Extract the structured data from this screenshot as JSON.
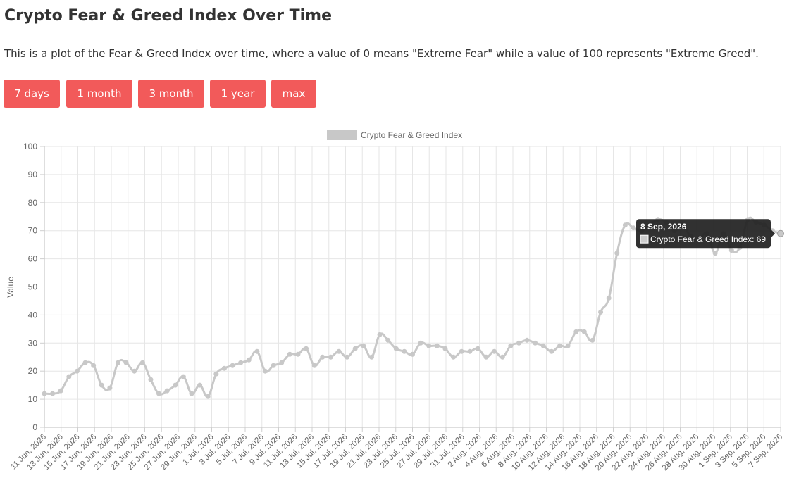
{
  "header": {
    "title": "Crypto Fear & Greed Index Over Time",
    "description": "This is a plot of the Fear & Greed Index over time, where a value of 0 means \"Extreme Fear\" while a value of 100 represents \"Extreme Greed\"."
  },
  "buttons": [
    "7 days",
    "1 month",
    "3 month",
    "1 year",
    "max"
  ],
  "colors": {
    "accent": "#f25a5a",
    "line": "#c8c8c8",
    "grid": "#e6e6e6",
    "tooltip_bg": "#1f1f1f"
  },
  "tooltip": {
    "title": "8 Sep, 2026",
    "label": "Crypto Fear & Greed Index: 69"
  },
  "chart_data": {
    "type": "line",
    "legend": "Crypto Fear & Greed Index",
    "legend_position": "top",
    "ylabel": "Value",
    "xlabel": "",
    "ylim": [
      0,
      100
    ],
    "yticks": [
      0,
      10,
      20,
      30,
      40,
      50,
      60,
      70,
      80,
      90,
      100
    ],
    "grid": true,
    "xtick_labels": [
      "11 Jun, 2026",
      "13 Jun, 2026",
      "15 Jun, 2026",
      "17 Jun, 2026",
      "19 Jun, 2026",
      "21 Jun, 2026",
      "23 Jun, 2026",
      "25 Jun, 2026",
      "27 Jun, 2026",
      "29 Jun, 2026",
      "1 Jul, 2026",
      "3 Jul, 2026",
      "5 Jul, 2026",
      "7 Jul, 2026",
      "9 Jul, 2026",
      "11 Jul, 2026",
      "13 Jul, 2026",
      "15 Jul, 2026",
      "17 Jul, 2026",
      "19 Jul, 2026",
      "21 Jul, 2026",
      "23 Jul, 2026",
      "25 Jul, 2026",
      "27 Jul, 2026",
      "29 Jul, 2026",
      "31 Jul, 2026",
      "2 Aug, 2026",
      "4 Aug, 2026",
      "6 Aug, 2026",
      "8 Aug, 2026",
      "10 Aug, 2026",
      "12 Aug, 2026",
      "14 Aug, 2026",
      "16 Aug, 2026",
      "18 Aug, 2026",
      "20 Aug, 2026",
      "22 Aug, 2026",
      "24 Aug, 2026",
      "26 Aug, 2026",
      "28 Aug, 2026",
      "30 Aug, 2026",
      "1 Sep, 2026",
      "3 Sep, 2026",
      "5 Sep, 2026",
      "7 Sep, 2026"
    ],
    "values": [
      12,
      12,
      13,
      18,
      20,
      23,
      22,
      15,
      14,
      23,
      23,
      20,
      23,
      17,
      12,
      13,
      15,
      18,
      12,
      15,
      11,
      19,
      21,
      22,
      23,
      24,
      27,
      20,
      22,
      23,
      26,
      26,
      28,
      22,
      25,
      25,
      27,
      25,
      28,
      29,
      25,
      33,
      31,
      28,
      27,
      26,
      30,
      29,
      29,
      28,
      25,
      27,
      27,
      28,
      25,
      27,
      25,
      29,
      30,
      31,
      30,
      29,
      27,
      29,
      29,
      34,
      34,
      31,
      41,
      46,
      62,
      72,
      71,
      70,
      72,
      74,
      73,
      70,
      72,
      68,
      67,
      69,
      62,
      69,
      63,
      64,
      74,
      73,
      72,
      70,
      69
    ]
  }
}
